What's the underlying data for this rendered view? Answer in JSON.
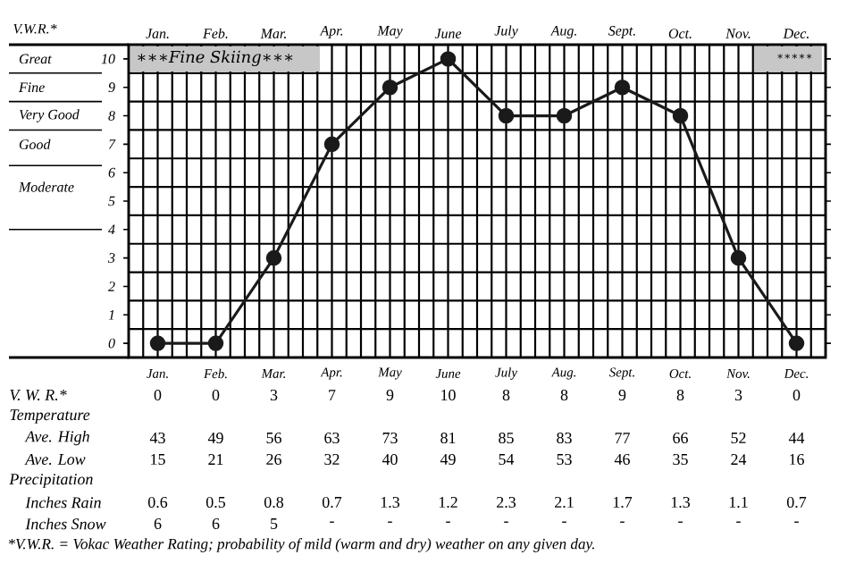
{
  "chart_data": [
    {
      "type": "line",
      "ylabel": "V.W.R.*",
      "categories": [
        "Jan.",
        "Feb.",
        "Mar.",
        "Apr.",
        "May",
        "June",
        "July",
        "Aug.",
        "Sept.",
        "Oct.",
        "Nov.",
        "Dec."
      ],
      "values": [
        0,
        0,
        3,
        7,
        9,
        10,
        8,
        8,
        9,
        8,
        3,
        0
      ],
      "color": "#1a1a1a",
      "ylim": [
        -0.5,
        10.5
      ],
      "yticks": [
        0,
        1,
        2,
        3,
        4,
        5,
        6,
        7,
        8,
        9,
        10
      ],
      "grid": true,
      "marker": "circle",
      "line_style": "solid",
      "annotations": [
        "∗∗∗Fine Skiing∗∗∗",
        "∗∗∗∗∗",
        "Great",
        "Fine",
        "Very Good",
        "Good",
        "Moderate"
      ]
    },
    {
      "type": "other",
      "categories": [
        "Jan.",
        "Feb.",
        "Mar.",
        "Apr.",
        "May",
        "June",
        "July",
        "Aug.",
        "Sept.",
        "Oct.",
        "Nov.",
        "Dec."
      ],
      "data_labels": true,
      "series": [
        {
          "name": "V. W. R.*",
          "values": [
            0,
            0,
            3,
            7,
            9,
            10,
            8,
            8,
            9,
            8,
            3,
            0
          ]
        },
        {
          "name": "Ave. High",
          "values": [
            43,
            49,
            56,
            63,
            73,
            81,
            85,
            83,
            77,
            66,
            52,
            44
          ]
        },
        {
          "name": "Ave. Low",
          "values": [
            15,
            21,
            26,
            32,
            40,
            49,
            54,
            53,
            46,
            35,
            24,
            16
          ]
        },
        {
          "name": "Inches Rain",
          "values": [
            0.6,
            0.5,
            0.8,
            0.7,
            1.3,
            1.2,
            2.3,
            2.1,
            1.7,
            1.3,
            1.1,
            0.7
          ]
        },
        {
          "name": "Inches Snow",
          "values": [
            6,
            6,
            5,
            null,
            null,
            null,
            null,
            null,
            null,
            null,
            null,
            null
          ],
          "value_labels": [
            "6",
            "6",
            "5",
            "-",
            "-",
            "-",
            "-",
            "-",
            "-",
            "-",
            "-",
            "-"
          ]
        }
      ],
      "annotations": [
        "Temperature",
        "Precipitation",
        "*V.W.R. = Vokac Weather Rating; probability of mild (warm and dry) weather on any given day."
      ]
    }
  ]
}
